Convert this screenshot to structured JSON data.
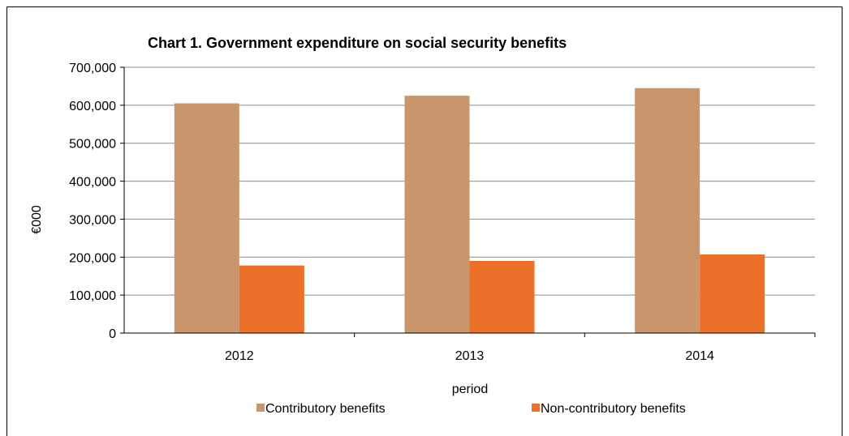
{
  "chart_data": {
    "type": "bar",
    "title": "Chart 1.  Government expenditure on social security benefits",
    "xlabel": "period",
    "ylabel": "€000",
    "categories": [
      "2012",
      "2013",
      "2014"
    ],
    "series": [
      {
        "name": "Contributory benefits",
        "color": "#c9956b",
        "values": [
          605000,
          625000,
          645000
        ]
      },
      {
        "name": "Non-contributory benefits",
        "color": "#ec7128",
        "values": [
          178000,
          190000,
          207000
        ]
      }
    ],
    "ylim": [
      0,
      700000
    ],
    "yticks": [
      0,
      100000,
      200000,
      300000,
      400000,
      500000,
      600000,
      700000
    ],
    "ytick_labels": [
      "0",
      "100,000",
      "200,000",
      "300,000",
      "400,000",
      "500,000",
      "600,000",
      "700,000"
    ],
    "grid": true,
    "legend_position": "bottom"
  }
}
